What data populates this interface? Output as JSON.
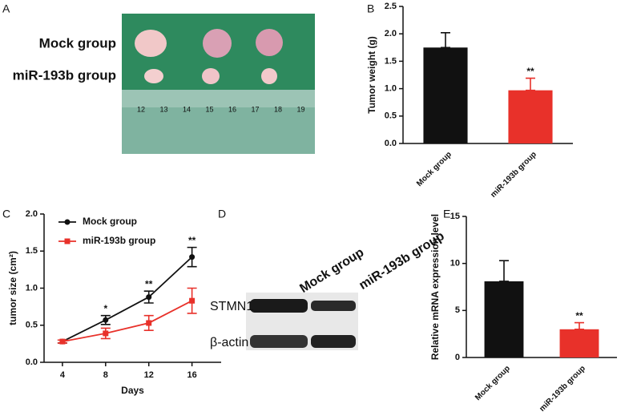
{
  "panel_labels": [
    "A",
    "B",
    "C",
    "D",
    "E"
  ],
  "photo": {
    "row_labels": [
      "Mock group",
      "miR-193b group"
    ],
    "ruler_numbers": [
      "12",
      "13",
      "14",
      "15",
      "16",
      "17",
      "18",
      "19"
    ]
  },
  "blot": {
    "columns": [
      "Mock group",
      "miR-193b group"
    ],
    "rows": [
      "STMN1",
      "β-actin"
    ]
  },
  "chart_data": [
    {
      "type": "bar",
      "ylabel": "Tumor weight (g)",
      "categories": [
        "Mock group",
        "miR-193b group"
      ],
      "values": [
        1.75,
        0.97
      ],
      "errors": [
        0.27,
        0.22
      ],
      "colors": [
        "#111111",
        "#e8312a"
      ],
      "ylim": [
        0,
        2.5
      ],
      "yticks": [
        {
          "value": 0,
          "label": "0.0"
        },
        0.5,
        {
          "value": 1,
          "label": "1.0"
        },
        1.5,
        {
          "value": 2,
          "label": "2.0"
        },
        2.5
      ],
      "annotations": [
        {
          "text": "**",
          "index": 1
        }
      ]
    },
    {
      "type": "line",
      "ylabel": "tumor size (cm²)",
      "xlabel": "Days",
      "x": [
        4,
        8,
        12,
        16
      ],
      "series": [
        {
          "name": "Mock group",
          "color": "#111111",
          "marker": "circle",
          "values": [
            0.28,
            0.57,
            0.88,
            1.42
          ],
          "errors": [
            0.02,
            0.06,
            0.08,
            0.13
          ]
        },
        {
          "name": "miR-193b group",
          "color": "#e8312a",
          "marker": "square",
          "values": [
            0.28,
            0.39,
            0.53,
            0.83
          ],
          "errors": [
            0.02,
            0.07,
            0.1,
            0.17
          ]
        }
      ],
      "xlim": [
        2.3,
        18.7
      ],
      "xticks": [
        4,
        8,
        12,
        16
      ],
      "ylim": [
        0,
        2
      ],
      "yticks": [
        {
          "value": 0,
          "label": "0.0"
        },
        0.5,
        {
          "value": 1,
          "label": "1.0"
        },
        1.5,
        {
          "value": 2,
          "label": "2.0"
        }
      ],
      "legend": "upper left",
      "annotations": [
        {
          "text": "*",
          "x": 8
        },
        {
          "text": "**",
          "x": 12
        },
        {
          "text": "**",
          "x": 16
        }
      ]
    },
    {
      "type": "bar",
      "ylabel": "Relative  mRNA expression level",
      "categories": [
        "Mock group",
        "miR-193b group"
      ],
      "values": [
        8.1,
        3.0
      ],
      "errors": [
        2.2,
        0.7
      ],
      "colors": [
        "#111111",
        "#e8312a"
      ],
      "ylim": [
        0,
        15
      ],
      "yticks": [
        0,
        5,
        10,
        15
      ],
      "annotations": [
        {
          "text": "**",
          "index": 1
        }
      ]
    }
  ]
}
